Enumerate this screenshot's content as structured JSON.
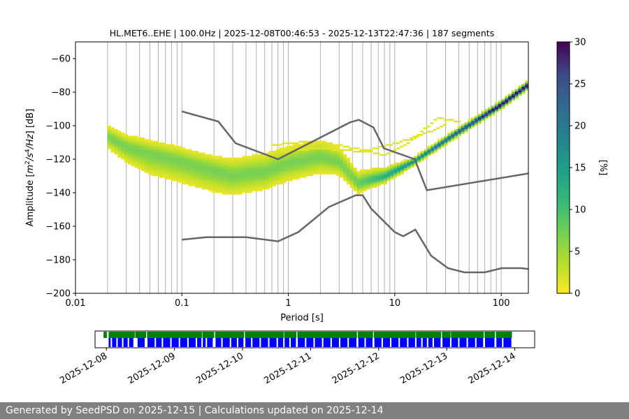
{
  "chart_data": [
    {
      "type": "heatmap",
      "title": "HL.MET6..EHE | 100.0Hz | 2025-12-08T00:46:53 - 2025-12-13T22:47:36 | 187 segments",
      "xlabel": "Period [s]",
      "ylabel": "Amplitude [m²/s⁴/Hz] [dB]",
      "ylabel_parts": [
        "Amplitude [",
        "m",
        "2",
        "/s",
        "4",
        "/Hz",
        "] [dB]"
      ],
      "x_scale": "log",
      "xlim": [
        0.01,
        180
      ],
      "ylim": [
        -200,
        -50
      ],
      "xticks": [
        {
          "v": 0.01,
          "label": "0.01"
        },
        {
          "v": 0.1,
          "label": "0.1"
        },
        {
          "v": 1,
          "label": "1"
        },
        {
          "v": 10,
          "label": "10"
        },
        {
          "v": 100,
          "label": "100"
        }
      ],
      "yticks": [
        {
          "v": -60,
          "label": "−60"
        },
        {
          "v": -80,
          "label": "−80"
        },
        {
          "v": -100,
          "label": "−100"
        },
        {
          "v": -120,
          "label": "−120"
        },
        {
          "v": -140,
          "label": "−140"
        },
        {
          "v": -160,
          "label": "−160"
        },
        {
          "v": -180,
          "label": "−180"
        },
        {
          "v": -200,
          "label": "−200"
        }
      ],
      "grid": "vertical log minor grid",
      "colormap": "viridis_r",
      "colorbar": {
        "label": "[%]",
        "range": [
          0,
          30
        ],
        "ticks": [
          {
            "v": 0,
            "label": "0"
          },
          {
            "v": 5,
            "label": "5"
          },
          {
            "v": 10,
            "label": "10"
          },
          {
            "v": 15,
            "label": "15"
          },
          {
            "v": 20,
            "label": "20"
          },
          {
            "v": 25,
            "label": "25"
          },
          {
            "v": 30,
            "label": "30"
          }
        ]
      },
      "density": {
        "period_start": 0.02,
        "period_end": 180,
        "main_trend": [
          {
            "period": 0.02,
            "db": -107
          },
          {
            "period": 0.03,
            "db": -113
          },
          {
            "period": 0.05,
            "db": -117
          },
          {
            "period": 0.08,
            "db": -120
          },
          {
            "period": 0.15,
            "db": -125
          },
          {
            "period": 0.3,
            "db": -130
          },
          {
            "period": 0.6,
            "db": -128
          },
          {
            "period": 1.0,
            "db": -123
          },
          {
            "period": 2.0,
            "db": -119
          },
          {
            "period": 3.0,
            "db": -122
          },
          {
            "period": 4.5,
            "db": -135
          },
          {
            "period": 8,
            "db": -131
          },
          {
            "period": 15,
            "db": -122
          },
          {
            "period": 40,
            "db": -104
          },
          {
            "period": 100,
            "db": -88
          },
          {
            "period": 180,
            "db": -76
          }
        ],
        "spread_db": [
          {
            "period": 0.02,
            "below": 6,
            "above": 6
          },
          {
            "period": 0.05,
            "below": 12,
            "above": 7
          },
          {
            "period": 0.2,
            "below": 12,
            "above": 8
          },
          {
            "period": 0.5,
            "below": 10,
            "above": 10
          },
          {
            "period": 2.0,
            "below": 9,
            "above": 9
          },
          {
            "period": 6,
            "below": 4,
            "above": 6
          },
          {
            "period": 15,
            "below": 2,
            "above": 2
          },
          {
            "period": 180,
            "below": 2,
            "above": 2
          }
        ],
        "scatter_traces": [
          [
            {
              "period": 0.7,
              "db": -112
            },
            {
              "period": 1.5,
              "db": -110
            },
            {
              "period": 3,
              "db": -112
            },
            {
              "period": 8,
              "db": -118
            },
            {
              "period": 14,
              "db": -110
            },
            {
              "period": 25,
              "db": -96
            },
            {
              "period": 40,
              "db": -98
            }
          ],
          [
            {
              "period": 0.8,
              "db": -116
            },
            {
              "period": 2,
              "db": -114
            },
            {
              "period": 5,
              "db": -116
            },
            {
              "period": 9,
              "db": -112
            },
            {
              "period": 18,
              "db": -106
            },
            {
              "period": 30,
              "db": -100
            }
          ]
        ]
      },
      "series": [
        {
          "kind": "noise_model_high",
          "points": [
            {
              "period": 0.1,
              "db": -91.5
            },
            {
              "period": 0.22,
              "db": -97.5
            },
            {
              "period": 0.32,
              "db": -110.5
            },
            {
              "period": 0.8,
              "db": -120
            },
            {
              "period": 3.8,
              "db": -98
            },
            {
              "period": 4.6,
              "db": -96.5
            },
            {
              "period": 6.3,
              "db": -101
            },
            {
              "period": 7.9,
              "db": -113.5
            },
            {
              "period": 15.4,
              "db": -120
            },
            {
              "period": 20,
              "db": -138.5
            },
            {
              "period": 180,
              "db": -128.5
            }
          ]
        },
        {
          "kind": "noise_model_low",
          "points": [
            {
              "period": 0.1,
              "db": -168
            },
            {
              "period": 0.17,
              "db": -166.5
            },
            {
              "period": 0.4,
              "db": -166.5
            },
            {
              "period": 0.8,
              "db": -169
            },
            {
              "period": 1.24,
              "db": -163.5
            },
            {
              "period": 2.4,
              "db": -148.5
            },
            {
              "period": 4.3,
              "db": -141.5
            },
            {
              "period": 5.0,
              "db": -141.5
            },
            {
              "period": 6.0,
              "db": -149.5
            },
            {
              "period": 10.0,
              "db": -163.5
            },
            {
              "period": 12.0,
              "db": -166
            },
            {
              "period": 15.6,
              "db": -162
            },
            {
              "period": 21.9,
              "db": -177.5
            },
            {
              "period": 31.6,
              "db": -185
            },
            {
              "period": 45,
              "db": -187.5
            },
            {
              "period": 70,
              "db": -187.5
            },
            {
              "period": 101,
              "db": -185
            },
            {
              "period": 154,
              "db": -185
            },
            {
              "period": 180,
              "db": -185.5
            }
          ]
        }
      ],
      "colors": {
        "noise_model": "#666666",
        "grid": "#b0b0b0"
      }
    },
    {
      "type": "timeline",
      "xlim": [
        "2025-12-07 20:00",
        "2025-12-14 07:00"
      ],
      "xticks": [
        {
          "v": "2025-12-08",
          "label": "2025-12-08"
        },
        {
          "v": "2025-12-09",
          "label": "2025-12-09"
        },
        {
          "v": "2025-12-10",
          "label": "2025-12-10"
        },
        {
          "v": "2025-12-11",
          "label": "2025-12-11"
        },
        {
          "v": "2025-12-12",
          "label": "2025-12-12"
        },
        {
          "v": "2025-12-13",
          "label": "2025-12-13"
        },
        {
          "v": "2025-12-14",
          "label": "2025-12-14"
        }
      ],
      "colors": {
        "data_available": "#008000",
        "used_segments": "#0000ff"
      },
      "data_available": [
        [
          "2025-12-07 23:00",
          "2025-12-08 00:10"
        ],
        [
          "2025-12-08 00:47",
          "2025-12-08 10:00"
        ],
        [
          "2025-12-08 10:10",
          "2025-12-08 14:00"
        ],
        [
          "2025-12-08 14:20",
          "2025-12-09 09:40"
        ],
        [
          "2025-12-09 09:50",
          "2025-12-09 14:00"
        ],
        [
          "2025-12-09 14:20",
          "2025-12-10 00:30"
        ],
        [
          "2025-12-10 00:50",
          "2025-12-10 14:30"
        ],
        [
          "2025-12-10 14:40",
          "2025-12-10 19:00"
        ],
        [
          "2025-12-10 19:20",
          "2025-12-11 16:20"
        ],
        [
          "2025-12-11 16:40",
          "2025-12-11 22:00"
        ],
        [
          "2025-12-11 22:20",
          "2025-12-12 13:00"
        ],
        [
          "2025-12-12 13:10",
          "2025-12-12 22:00"
        ],
        [
          "2025-12-12 22:20",
          "2025-12-13 01:20"
        ],
        [
          "2025-12-13 01:30",
          "2025-12-13 13:00"
        ],
        [
          "2025-12-13 13:20",
          "2025-12-13 17:00"
        ],
        [
          "2025-12-13 17:20",
          "2025-12-13 23:00"
        ]
      ],
      "used_segments": [
        [
          "2025-12-08 00:47",
          "2025-12-08 01:30"
        ],
        [
          "2025-12-08 02:00",
          "2025-12-08 03:30"
        ],
        [
          "2025-12-08 04:00",
          "2025-12-08 05:30"
        ],
        [
          "2025-12-08 06:00",
          "2025-12-08 07:30"
        ],
        [
          "2025-12-08 08:00",
          "2025-12-08 09:30"
        ],
        [
          "2025-12-08 11:00",
          "2025-12-08 13:30"
        ],
        [
          "2025-12-08 14:30",
          "2025-12-08 17:00"
        ],
        [
          "2025-12-08 17:30",
          "2025-12-08 19:30"
        ],
        [
          "2025-12-08 20:00",
          "2025-12-08 22:30"
        ],
        [
          "2025-12-08 23:00",
          "2025-12-09 01:30"
        ],
        [
          "2025-12-09 02:00",
          "2025-12-09 04:30"
        ],
        [
          "2025-12-09 05:00",
          "2025-12-09 07:30"
        ],
        [
          "2025-12-09 08:00",
          "2025-12-09 09:30"
        ],
        [
          "2025-12-09 10:00",
          "2025-12-09 11:00"
        ],
        [
          "2025-12-09 11:30",
          "2025-12-09 13:30"
        ],
        [
          "2025-12-09 14:30",
          "2025-12-09 16:30"
        ],
        [
          "2025-12-09 17:00",
          "2025-12-09 19:30"
        ],
        [
          "2025-12-09 20:00",
          "2025-12-09 22:00"
        ],
        [
          "2025-12-09 22:30",
          "2025-12-10 00:20"
        ],
        [
          "2025-12-10 01:00",
          "2025-12-10 03:00"
        ],
        [
          "2025-12-10 03:30",
          "2025-12-10 06:00"
        ],
        [
          "2025-12-10 06:30",
          "2025-12-10 09:00"
        ],
        [
          "2025-12-10 09:30",
          "2025-12-10 12:00"
        ],
        [
          "2025-12-10 12:30",
          "2025-12-10 14:20"
        ],
        [
          "2025-12-10 14:50",
          "2025-12-10 16:30"
        ],
        [
          "2025-12-10 17:00",
          "2025-12-10 18:50"
        ],
        [
          "2025-12-10 19:30",
          "2025-12-10 22:00"
        ],
        [
          "2025-12-10 22:30",
          "2025-12-11 01:00"
        ],
        [
          "2025-12-11 01:30",
          "2025-12-11 04:00"
        ],
        [
          "2025-12-11 04:30",
          "2025-12-11 07:00"
        ],
        [
          "2025-12-11 07:30",
          "2025-12-11 10:00"
        ],
        [
          "2025-12-11 10:30",
          "2025-12-11 13:00"
        ],
        [
          "2025-12-11 13:30",
          "2025-12-11 16:10"
        ],
        [
          "2025-12-11 16:50",
          "2025-12-11 19:00"
        ],
        [
          "2025-12-11 19:30",
          "2025-12-11 21:50"
        ],
        [
          "2025-12-11 22:30",
          "2025-12-12 01:00"
        ],
        [
          "2025-12-12 01:30",
          "2025-12-12 04:00"
        ],
        [
          "2025-12-12 04:30",
          "2025-12-12 07:00"
        ],
        [
          "2025-12-12 07:30",
          "2025-12-12 10:00"
        ],
        [
          "2025-12-12 10:30",
          "2025-12-12 12:50"
        ],
        [
          "2025-12-12 13:20",
          "2025-12-12 15:00"
        ],
        [
          "2025-12-12 15:30",
          "2025-12-12 17:00"
        ],
        [
          "2025-12-12 17:30",
          "2025-12-12 19:00"
        ],
        [
          "2025-12-12 19:30",
          "2025-12-12 21:50"
        ],
        [
          "2025-12-12 22:30",
          "2025-12-13 01:10"
        ],
        [
          "2025-12-13 01:40",
          "2025-12-13 04:00"
        ],
        [
          "2025-12-13 04:30",
          "2025-12-13 07:00"
        ],
        [
          "2025-12-13 07:30",
          "2025-12-13 10:00"
        ],
        [
          "2025-12-13 10:30",
          "2025-12-13 12:50"
        ],
        [
          "2025-12-13 13:30",
          "2025-12-13 16:50"
        ],
        [
          "2025-12-13 17:30",
          "2025-12-13 19:30"
        ],
        [
          "2025-12-13 20:00",
          "2025-12-13 22:47"
        ]
      ]
    }
  ],
  "footer": {
    "text": "Generated by SeedPSD on 2025-12-15 | Calculations updated on 2025-12-14"
  }
}
